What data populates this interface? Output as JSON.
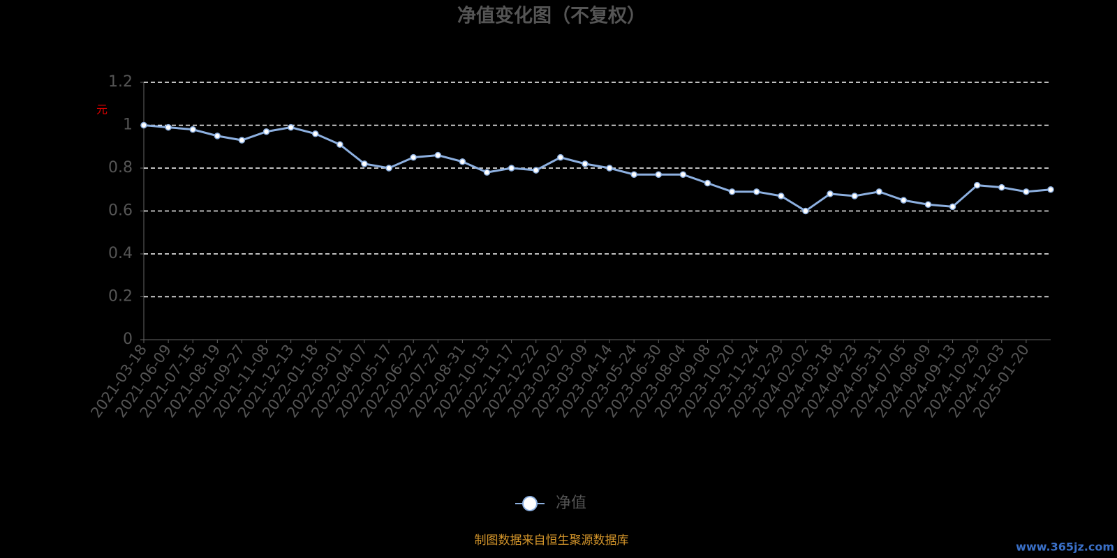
{
  "chart_data": {
    "type": "line",
    "title": "净值变化图（不复权）",
    "y_label": "元",
    "categories": [
      "2021-03-18",
      "2021-06-09",
      "2021-07-15",
      "2021-08-19",
      "2021-09-27",
      "2021-11-08",
      "2021-12-13",
      "2022-01-18",
      "2022-03-01",
      "2022-04-07",
      "2022-05-17",
      "2022-06-22",
      "2022-07-27",
      "2022-08-31",
      "2022-10-13",
      "2022-11-17",
      "2022-12-22",
      "2023-02-02",
      "2023-03-09",
      "2023-04-14",
      "2023-05-24",
      "2023-06-30",
      "2023-08-04",
      "2023-09-08",
      "2023-10-20",
      "2023-11-24",
      "2023-12-29",
      "2024-02-02",
      "2024-03-18",
      "2024-04-23",
      "2024-05-31",
      "2024-07-05",
      "2024-08-09",
      "2024-09-13",
      "2024-10-29",
      "2024-12-03",
      "2025-01-20",
      null
    ],
    "series": [
      {
        "name": "净值",
        "color": "#8db0e0",
        "values": [
          1.0,
          0.99,
          0.98,
          0.95,
          0.93,
          0.97,
          0.99,
          0.96,
          0.91,
          0.82,
          0.8,
          0.85,
          0.86,
          0.83,
          0.78,
          0.8,
          0.79,
          0.85,
          0.82,
          0.8,
          0.77,
          0.77,
          0.77,
          0.73,
          0.69,
          0.69,
          0.67,
          0.6,
          0.68,
          0.67,
          0.69,
          0.65,
          0.63,
          0.62,
          0.72,
          0.71,
          0.69,
          0.7
        ]
      }
    ],
    "ylim": [
      0,
      1.2
    ],
    "yticks": [
      0,
      0.2,
      0.4,
      0.6,
      0.8,
      1,
      1.2
    ],
    "grid": true,
    "source": "制图数据来自恒生聚源数据库",
    "watermark": "www.365jz.com"
  }
}
